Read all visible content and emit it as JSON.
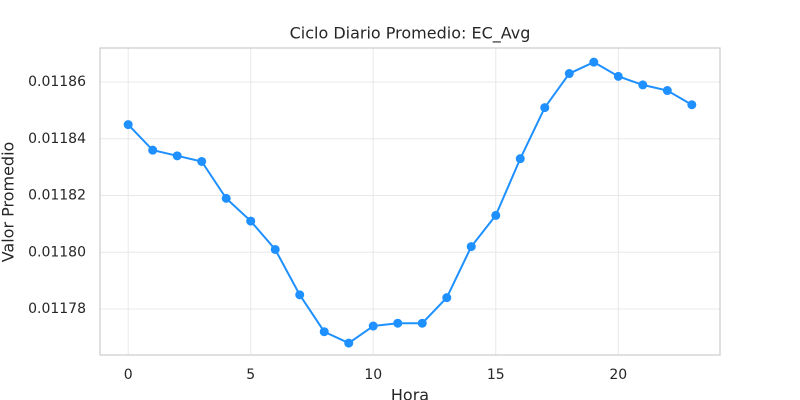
{
  "chart_data": {
    "type": "line",
    "title": "Ciclo Diario Promedio: EC_Avg",
    "x_label": "Hora",
    "y_label": "Valor Promedio",
    "x": [
      0,
      1,
      2,
      3,
      4,
      5,
      6,
      7,
      8,
      9,
      10,
      11,
      12,
      13,
      14,
      15,
      16,
      17,
      18,
      19,
      20,
      21,
      22,
      23
    ],
    "values": [
      0.011845,
      0.011836,
      0.011834,
      0.011832,
      0.011819,
      0.011811,
      0.011801,
      0.011785,
      0.011772,
      0.011768,
      0.011774,
      0.011775,
      0.011775,
      0.011784,
      0.011802,
      0.011813,
      0.011833,
      0.011851,
      0.011863,
      0.011867,
      0.011862,
      0.011859,
      0.011857,
      0.011852
    ],
    "color": "#1e90ff",
    "xlim": [
      -1.15,
      24.15
    ],
    "xticks": [
      0,
      5,
      10,
      15,
      20
    ],
    "ylim": [
      0.0117638,
      0.011872
    ],
    "yticks": [
      {
        "value": 0.01178,
        "label": "0.01178"
      },
      {
        "value": 0.0118,
        "label": "0.01180"
      },
      {
        "value": 0.01182,
        "label": "0.01182"
      },
      {
        "value": 0.01184,
        "label": "0.01184"
      },
      {
        "value": 0.01186,
        "label": "0.01186"
      }
    ],
    "grid": true
  }
}
